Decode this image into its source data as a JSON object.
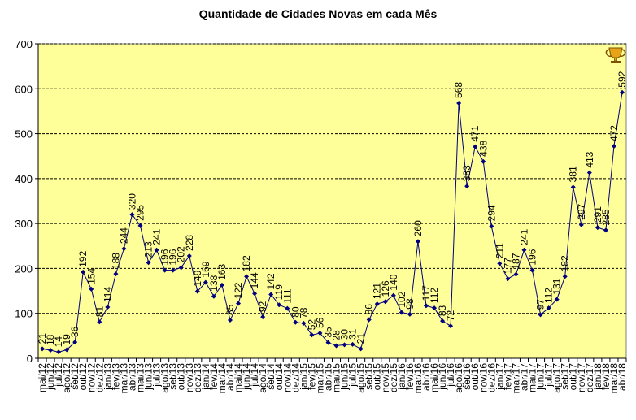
{
  "chart_data": {
    "type": "line",
    "title": "Quantidade de Cidades Novas em cada Mês",
    "xlabel": "",
    "ylabel": "",
    "ylim": [
      0,
      700
    ],
    "yticks": [
      0,
      100,
      200,
      300,
      400,
      500,
      600,
      700
    ],
    "grid": true,
    "legend": "none",
    "colors": {
      "plot_background": "#ffff99",
      "line": "#000080",
      "marker": "#000080",
      "grid": "#000000"
    },
    "icon": "trophy-icon",
    "categories": [
      "mai/12",
      "jun/12",
      "jul/12",
      "ago/12",
      "set/12",
      "out/12",
      "nov/12",
      "dez/12",
      "jan/13",
      "fev/13",
      "mar/13",
      "abr/13",
      "mai/13",
      "jun/13",
      "jul/13",
      "ago/13",
      "set/13",
      "out/13",
      "nov/13",
      "dez/13",
      "jan/14",
      "fev/14",
      "mar/14",
      "abr/14",
      "mai/14",
      "jun/14",
      "jul/14",
      "ago/14",
      "set/14",
      "out/14",
      "nov/14",
      "dez/14",
      "jan/15",
      "fev/15",
      "mar/15",
      "abr/15",
      "mai/15",
      "jun/15",
      "jul/15",
      "ago/15",
      "set/15",
      "out/15",
      "nov/15",
      "dez/15",
      "jan/16",
      "fev/16",
      "mar/16",
      "abr/16",
      "mai/16",
      "jun/16",
      "jul/16",
      "ago/16",
      "set/16",
      "out/16",
      "nov/16",
      "dez/16",
      "jan/17",
      "fev/17",
      "mar/17",
      "abr/17",
      "mai/17",
      "jun/17",
      "jul/17",
      "ago/17",
      "set/17",
      "out/17",
      "nov/17",
      "dez/17",
      "jan/18",
      "fev/18",
      "mar/18",
      "abr/18"
    ],
    "values": [
      21,
      18,
      14,
      19,
      36,
      192,
      154,
      81,
      114,
      188,
      244,
      320,
      295,
      213,
      241,
      196,
      196,
      202,
      228,
      149,
      169,
      138,
      163,
      85,
      122,
      182,
      144,
      92,
      142,
      119,
      111,
      80,
      78,
      52,
      56,
      35,
      28,
      30,
      31,
      21,
      86,
      121,
      126,
      140,
      102,
      98,
      260,
      117,
      112,
      83,
      72,
      568,
      383,
      471,
      438,
      294,
      211,
      177,
      187,
      241,
      196,
      97,
      112,
      131,
      182,
      381,
      297,
      413,
      291,
      285,
      472,
      592
    ]
  }
}
